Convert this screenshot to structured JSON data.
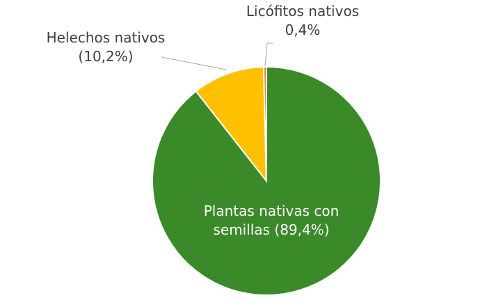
{
  "chart_data": {
    "type": "pie",
    "categories": [
      "Plantas nativas con semillas",
      "Helechos nativos",
      "Licófitos nativos"
    ],
    "values": [
      89.4,
      10.2,
      0.4
    ],
    "value_labels": [
      "(89,4%)",
      "(10,2%)",
      "0,4%"
    ],
    "colors": [
      "#3b8a2a",
      "#ffc000",
      "#ed7d31"
    ]
  }
}
